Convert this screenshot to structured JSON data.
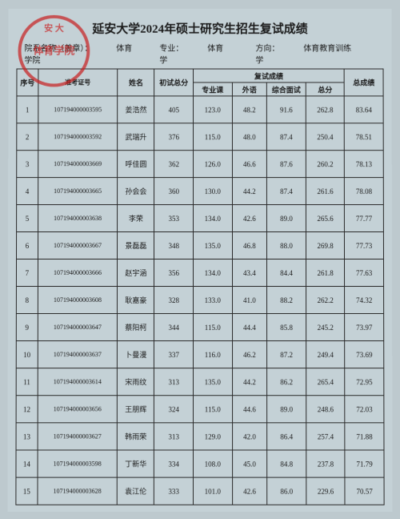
{
  "title": "延安大学2024年硕士研究生招生复试成绩",
  "meta": {
    "dept_label": "院系名称（盖章）：",
    "dept": "体育学院",
    "major_label": "专业：",
    "major": "体育学",
    "direction_label": "方向：",
    "direction": "体育教育训练学"
  },
  "stamp": {
    "arc": "安 大",
    "center": "体育学院"
  },
  "headers": {
    "idx": "序号",
    "exam_id": "准考证号",
    "name": "姓名",
    "init": "初试总分",
    "retest_group": "复试成绩",
    "subject": "专业课",
    "lang": "外语",
    "interview": "综合面试",
    "retest_total": "总分",
    "total": "总成绩"
  },
  "rows": [
    {
      "idx": "1",
      "id": "107194000003595",
      "name": "姜浩然",
      "init": "405",
      "sub": "123.0",
      "lang": "48.2",
      "intv": "91.6",
      "rtot": "262.8",
      "tot": "83.64"
    },
    {
      "idx": "2",
      "id": "107194000003592",
      "name": "武瑞升",
      "init": "376",
      "sub": "115.0",
      "lang": "48.0",
      "intv": "87.4",
      "rtot": "250.4",
      "tot": "78.51"
    },
    {
      "idx": "3",
      "id": "107194000003669",
      "name": "呼佳圆",
      "init": "362",
      "sub": "126.0",
      "lang": "46.6",
      "intv": "87.6",
      "rtot": "260.2",
      "tot": "78.13"
    },
    {
      "idx": "4",
      "id": "107194000003665",
      "name": "孙会会",
      "init": "360",
      "sub": "130.0",
      "lang": "44.2",
      "intv": "87.4",
      "rtot": "261.6",
      "tot": "78.08"
    },
    {
      "idx": "5",
      "id": "107194000003638",
      "name": "李荣",
      "init": "353",
      "sub": "134.0",
      "lang": "42.6",
      "intv": "89.0",
      "rtot": "265.6",
      "tot": "77.77"
    },
    {
      "idx": "6",
      "id": "107194000003667",
      "name": "景磊磊",
      "init": "348",
      "sub": "135.0",
      "lang": "46.8",
      "intv": "88.0",
      "rtot": "269.8",
      "tot": "77.73"
    },
    {
      "idx": "7",
      "id": "107194000003666",
      "name": "赵宇涵",
      "init": "356",
      "sub": "134.0",
      "lang": "43.4",
      "intv": "84.4",
      "rtot": "261.8",
      "tot": "77.63"
    },
    {
      "idx": "8",
      "id": "107194000003608",
      "name": "耿嘉豪",
      "init": "328",
      "sub": "133.0",
      "lang": "41.0",
      "intv": "88.2",
      "rtot": "262.2",
      "tot": "74.32"
    },
    {
      "idx": "9",
      "id": "107194000003647",
      "name": "蔡阳柯",
      "init": "344",
      "sub": "115.0",
      "lang": "44.4",
      "intv": "85.8",
      "rtot": "245.2",
      "tot": "73.97"
    },
    {
      "idx": "10",
      "id": "107194000003637",
      "name": "卜曼漫",
      "init": "337",
      "sub": "116.0",
      "lang": "46.2",
      "intv": "87.2",
      "rtot": "249.4",
      "tot": "73.69"
    },
    {
      "idx": "11",
      "id": "107194000003614",
      "name": "宋雨纹",
      "init": "313",
      "sub": "135.0",
      "lang": "44.2",
      "intv": "86.2",
      "rtot": "265.4",
      "tot": "72.95"
    },
    {
      "idx": "12",
      "id": "107194000003656",
      "name": "王朋辉",
      "init": "324",
      "sub": "115.0",
      "lang": "44.6",
      "intv": "89.0",
      "rtot": "248.6",
      "tot": "72.03"
    },
    {
      "idx": "13",
      "id": "107194000003627",
      "name": "韩雨荣",
      "init": "313",
      "sub": "129.0",
      "lang": "42.0",
      "intv": "86.4",
      "rtot": "257.4",
      "tot": "71.88"
    },
    {
      "idx": "14",
      "id": "107194000003598",
      "name": "丁新华",
      "init": "334",
      "sub": "108.0",
      "lang": "45.0",
      "intv": "84.8",
      "rtot": "237.8",
      "tot": "71.79"
    },
    {
      "idx": "15",
      "id": "107194000003628",
      "name": "袁江伦",
      "init": "333",
      "sub": "101.0",
      "lang": "42.6",
      "intv": "86.0",
      "rtot": "229.6",
      "tot": "70.57"
    }
  ]
}
